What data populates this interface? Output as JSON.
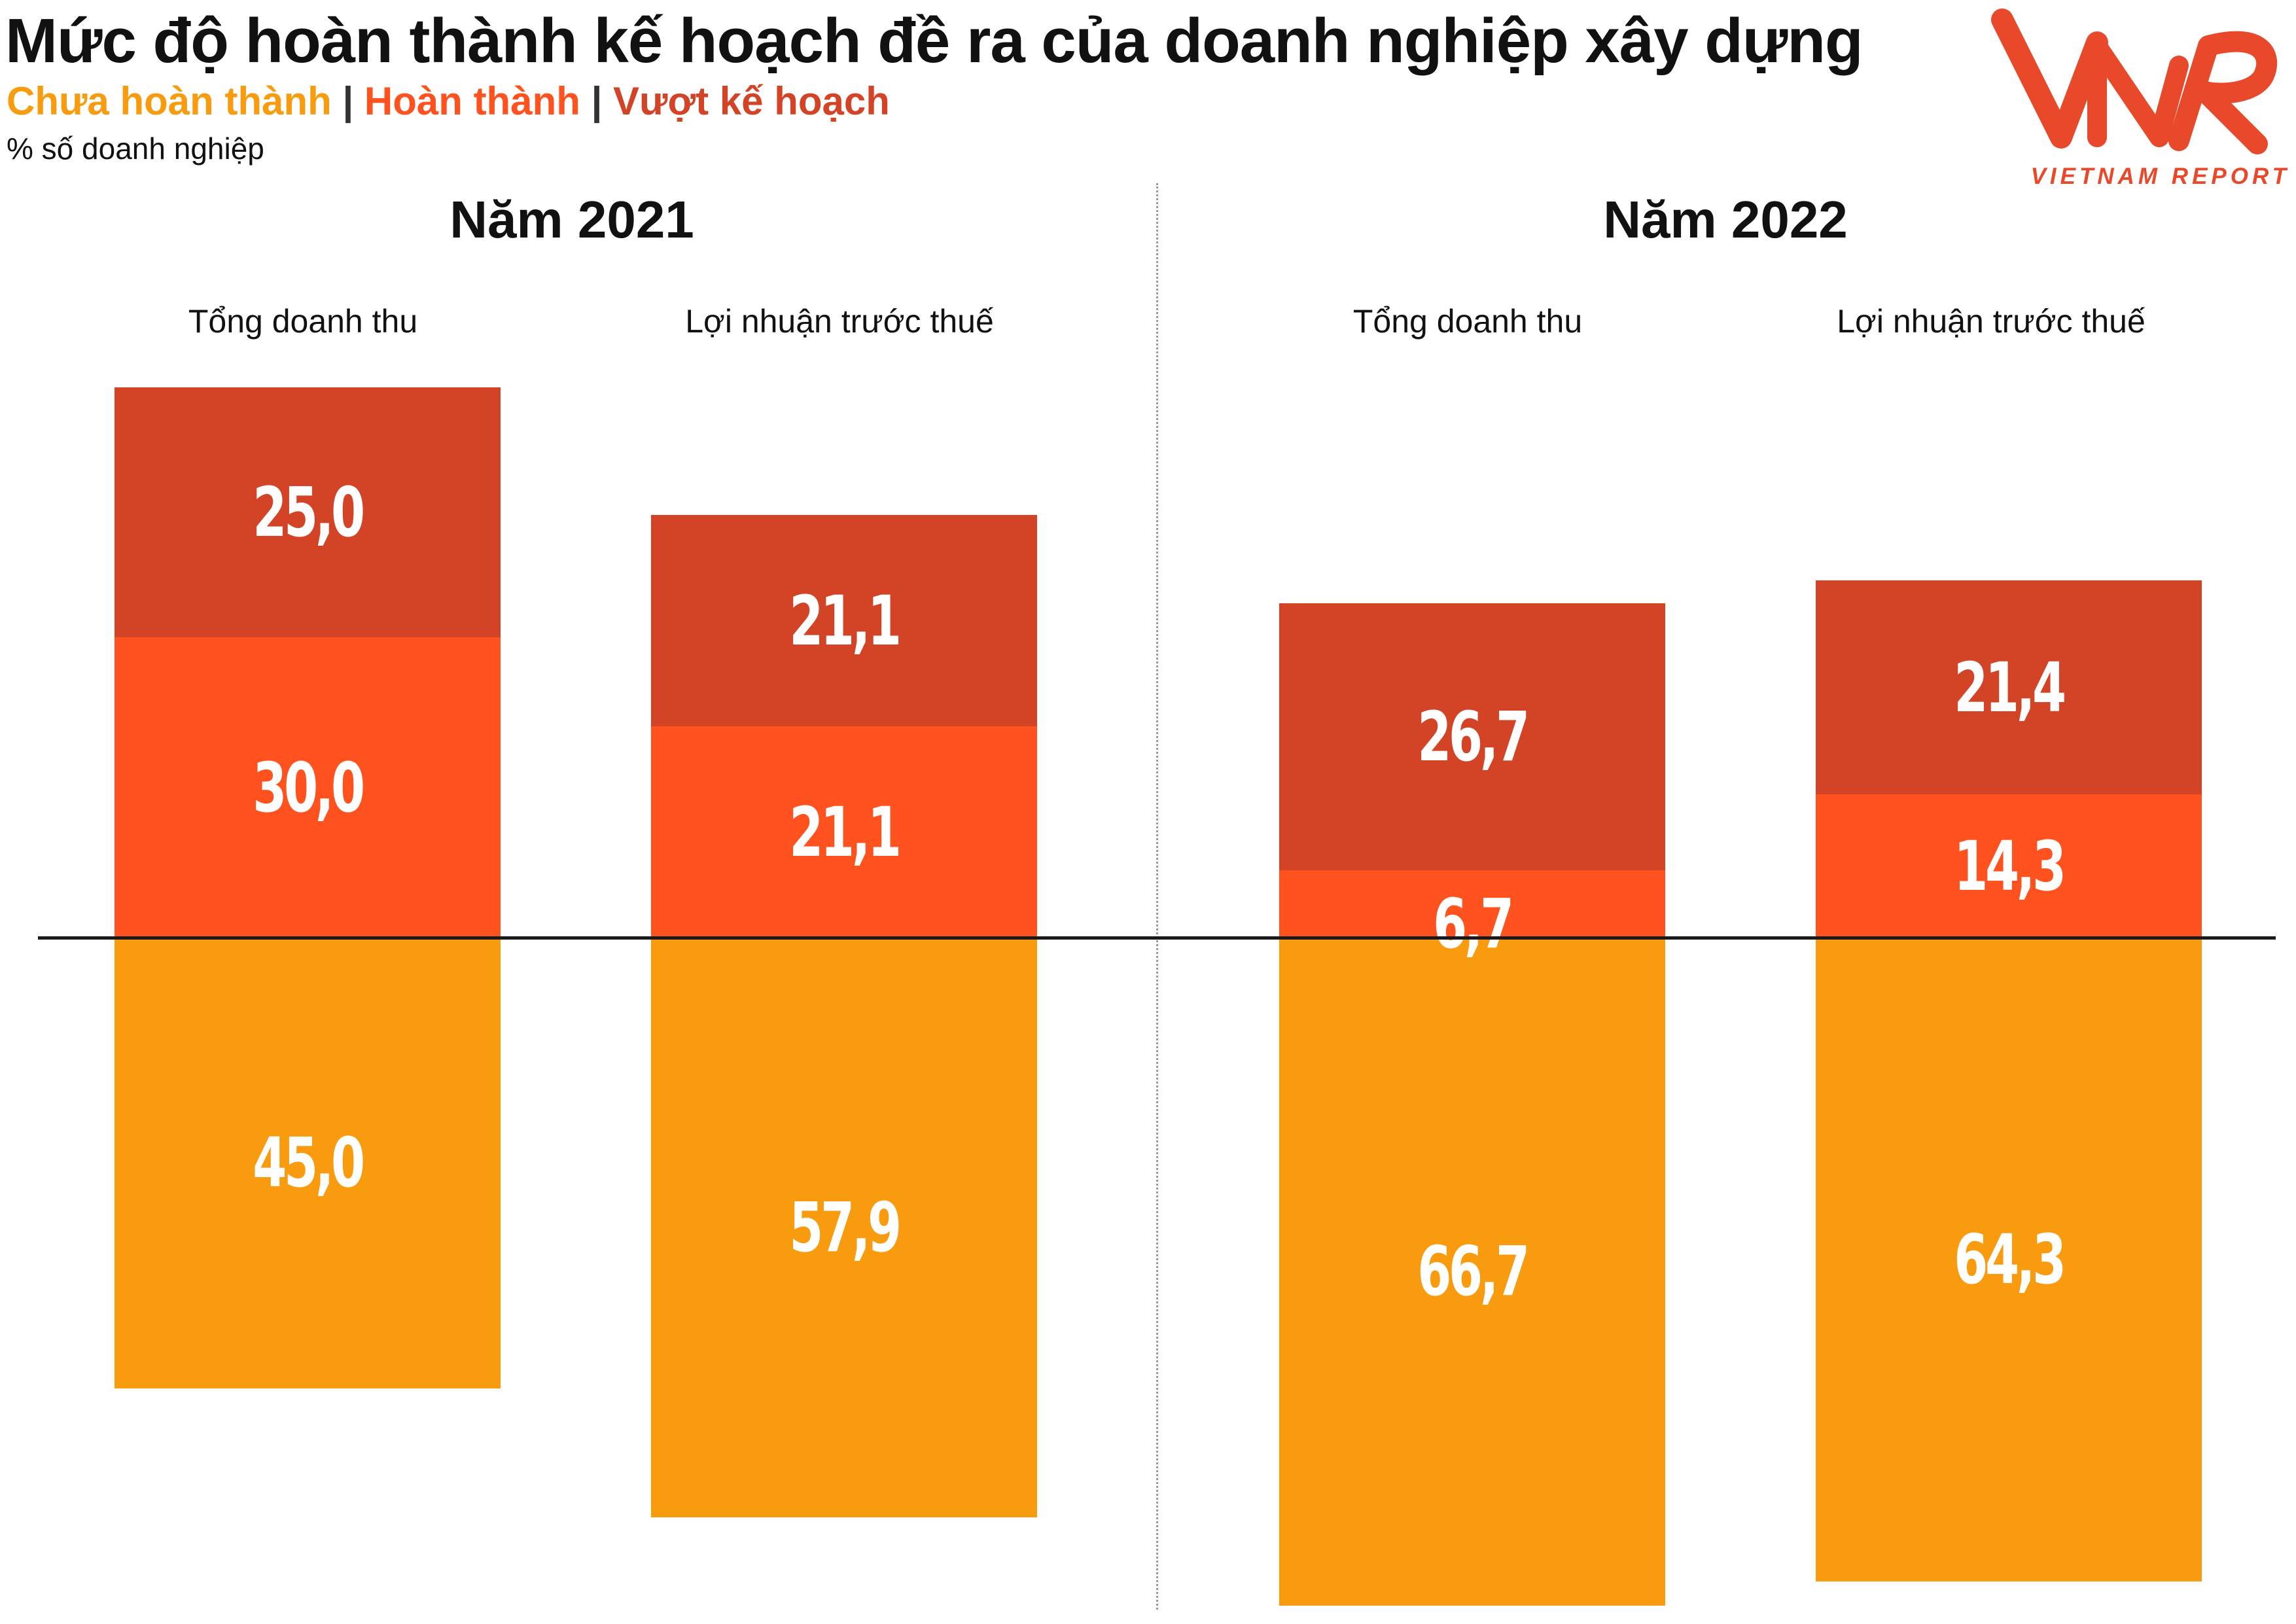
{
  "title": "Mức độ hoàn thành kế hoạch đề ra của doanh nghiệp xây dựng",
  "legend": [
    {
      "label": "Chưa hoàn thành",
      "color": "#F99B0E"
    },
    {
      "label": "Hoàn thành",
      "color": "#FF521F"
    },
    {
      "label": "Vượt kế hoạch",
      "color": "#D34326"
    }
  ],
  "legend_separator": "|",
  "unit": "% số doanh nghiệp",
  "logo": {
    "mark": "VNR",
    "text": "VIETNAM REPORT",
    "color": "#E8492B"
  },
  "colors": {
    "chua": "#F99B0E",
    "hoan": "#FF521F",
    "vuot": "#D34326"
  },
  "chart_data": {
    "type": "bar",
    "stacked": true,
    "diverging": true,
    "panels": [
      {
        "title": "Năm 2021",
        "categories": [
          "Tổng doanh thu",
          "Lợi nhuận trước thuế"
        ],
        "series": [
          {
            "name": "Chưa hoàn thành",
            "values": [
              45.0,
              57.9
            ],
            "labels": [
              "45,0",
              "57,9"
            ],
            "direction": "down"
          },
          {
            "name": "Hoàn thành",
            "values": [
              30.0,
              21.1
            ],
            "labels": [
              "30,0",
              "21,1"
            ],
            "direction": "up"
          },
          {
            "name": "Vượt kế hoạch",
            "values": [
              25.0,
              21.1
            ],
            "labels": [
              "25,0",
              "21,1"
            ],
            "direction": "up"
          }
        ]
      },
      {
        "title": "Năm 2022",
        "categories": [
          "Tổng doanh thu",
          "Lợi nhuận trước thuế"
        ],
        "series": [
          {
            "name": "Chưa hoàn thành",
            "values": [
              66.7,
              64.3
            ],
            "labels": [
              "66,7",
              "64,3"
            ],
            "direction": "down"
          },
          {
            "name": "Hoàn thành",
            "values": [
              6.7,
              14.3
            ],
            "labels": [
              "6,7",
              "14,3"
            ],
            "direction": "up"
          },
          {
            "name": "Vượt kế hoạch",
            "values": [
              26.7,
              21.4
            ],
            "labels": [
              "26,7",
              "21,4"
            ],
            "direction": "up"
          }
        ]
      }
    ]
  }
}
